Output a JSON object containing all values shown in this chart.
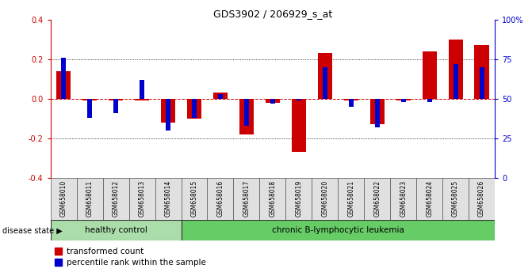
{
  "title": "GDS3902 / 206929_s_at",
  "samples": [
    "GSM658010",
    "GSM658011",
    "GSM658012",
    "GSM658013",
    "GSM658014",
    "GSM658015",
    "GSM658016",
    "GSM658017",
    "GSM658018",
    "GSM658019",
    "GSM658020",
    "GSM658021",
    "GSM658022",
    "GSM658023",
    "GSM658024",
    "GSM658025",
    "GSM658026"
  ],
  "red_values": [
    0.14,
    -0.01,
    -0.01,
    -0.01,
    -0.12,
    -0.1,
    0.03,
    -0.18,
    -0.02,
    -0.27,
    0.23,
    -0.01,
    -0.13,
    -0.01,
    0.24,
    0.3,
    0.27
  ],
  "blue_pct": [
    76,
    38,
    41,
    62,
    30,
    38,
    53,
    33,
    47,
    49,
    70,
    45,
    32,
    48,
    48,
    72,
    70
  ],
  "healthy_count": 5,
  "healthy_label": "healthy control",
  "disease_label": "chronic B-lymphocytic leukemia",
  "disease_state_label": "disease state",
  "legend_red": "transformed count",
  "legend_blue": "percentile rank within the sample",
  "red_color": "#cc0000",
  "blue_color": "#0000cc",
  "healthy_bg": "#aaddaa",
  "disease_bg": "#66cc66",
  "ylim_left": [
    -0.4,
    0.4
  ],
  "ylim_right": [
    0,
    100
  ],
  "yticks_left": [
    -0.4,
    -0.2,
    0.0,
    0.2,
    0.4
  ],
  "yticks_right": [
    0,
    25,
    50,
    75,
    100
  ],
  "hlines_dotted": [
    0.2,
    -0.2
  ],
  "zero_line_color": "#cc0000",
  "background_color": "#ffffff",
  "red_bar_width": 0.55,
  "blue_bar_width": 0.18
}
